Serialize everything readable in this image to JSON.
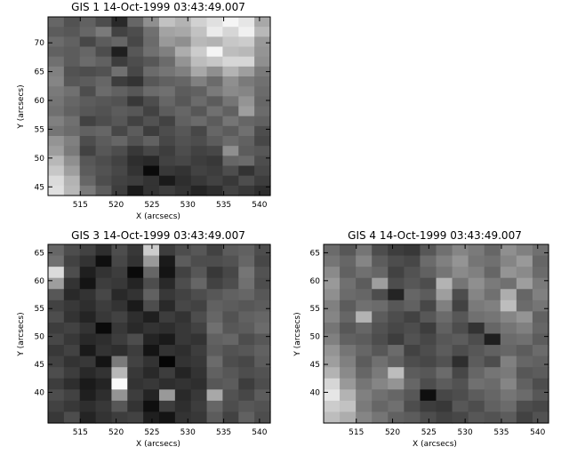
{
  "chart_data": [
    {
      "type": "heatmap",
      "title": "GIS 1 14-Oct-1999 03:43:49.007",
      "xlabel": "X (arcsecs)",
      "ylabel": "Y (arcsecs)",
      "xlim": [
        510.5,
        541.5
      ],
      "ylim": [
        43.5,
        74.5
      ],
      "xticks": [
        515,
        520,
        525,
        530,
        535,
        540
      ],
      "yticks": [
        45,
        50,
        55,
        60,
        65,
        70
      ],
      "grid": [
        [
          0.4,
          0.32,
          0.38,
          0.3,
          0.16,
          0.4,
          0.56,
          0.76,
          0.7,
          0.82,
          0.88,
          0.96,
          0.9,
          0.66
        ],
        [
          0.36,
          0.34,
          0.4,
          0.48,
          0.26,
          0.3,
          0.44,
          0.64,
          0.66,
          0.76,
          0.92,
          0.84,
          0.94,
          0.72
        ],
        [
          0.42,
          0.38,
          0.28,
          0.36,
          0.4,
          0.28,
          0.42,
          0.6,
          0.56,
          0.72,
          0.7,
          0.78,
          0.8,
          0.6
        ],
        [
          0.38,
          0.36,
          0.4,
          0.3,
          0.12,
          0.34,
          0.44,
          0.5,
          0.68,
          0.8,
          0.96,
          0.74,
          0.72,
          0.58
        ],
        [
          0.44,
          0.36,
          0.42,
          0.38,
          0.24,
          0.3,
          0.34,
          0.42,
          0.58,
          0.74,
          0.78,
          0.84,
          0.84,
          0.56
        ],
        [
          0.5,
          0.32,
          0.3,
          0.32,
          0.44,
          0.28,
          0.42,
          0.46,
          0.5,
          0.66,
          0.56,
          0.7,
          0.62,
          0.48
        ],
        [
          0.52,
          0.34,
          0.36,
          0.4,
          0.24,
          0.2,
          0.34,
          0.38,
          0.4,
          0.5,
          0.42,
          0.56,
          0.48,
          0.44
        ],
        [
          0.48,
          0.44,
          0.3,
          0.42,
          0.38,
          0.34,
          0.42,
          0.44,
          0.36,
          0.38,
          0.48,
          0.54,
          0.52,
          0.42
        ],
        [
          0.46,
          0.4,
          0.36,
          0.34,
          0.32,
          0.22,
          0.3,
          0.4,
          0.34,
          0.42,
          0.36,
          0.46,
          0.58,
          0.4
        ],
        [
          0.44,
          0.38,
          0.34,
          0.32,
          0.36,
          0.34,
          0.26,
          0.36,
          0.4,
          0.34,
          0.44,
          0.38,
          0.62,
          0.42
        ],
        [
          0.5,
          0.44,
          0.26,
          0.3,
          0.34,
          0.26,
          0.32,
          0.26,
          0.38,
          0.42,
          0.36,
          0.46,
          0.4,
          0.38
        ],
        [
          0.46,
          0.42,
          0.38,
          0.4,
          0.28,
          0.36,
          0.24,
          0.3,
          0.34,
          0.28,
          0.4,
          0.36,
          0.44,
          0.3
        ],
        [
          0.58,
          0.5,
          0.3,
          0.36,
          0.4,
          0.32,
          0.38,
          0.28,
          0.32,
          0.3,
          0.36,
          0.42,
          0.38,
          0.28
        ],
        [
          0.62,
          0.48,
          0.26,
          0.34,
          0.3,
          0.22,
          0.28,
          0.24,
          0.3,
          0.26,
          0.28,
          0.56,
          0.36,
          0.34
        ],
        [
          0.72,
          0.56,
          0.34,
          0.3,
          0.26,
          0.18,
          0.16,
          0.26,
          0.28,
          0.24,
          0.22,
          0.4,
          0.42,
          0.3
        ],
        [
          0.78,
          0.62,
          0.36,
          0.32,
          0.28,
          0.2,
          0.04,
          0.22,
          0.2,
          0.26,
          0.24,
          0.3,
          0.2,
          0.28
        ],
        [
          0.86,
          0.7,
          0.4,
          0.3,
          0.26,
          0.24,
          0.2,
          0.1,
          0.18,
          0.22,
          0.26,
          0.22,
          0.3,
          0.24
        ],
        [
          0.88,
          0.72,
          0.48,
          0.36,
          0.24,
          0.1,
          0.2,
          0.24,
          0.2,
          0.14,
          0.18,
          0.26,
          0.22,
          0.18
        ]
      ]
    },
    {
      "type": "heatmap",
      "title": "GIS 3 14-Oct-1999 03:43:49.007",
      "xlabel": "X (arcsecs)",
      "ylabel": "Y (arcsecs)",
      "xlim": [
        510.5,
        541.5
      ],
      "ylim": [
        34.5,
        66.5
      ],
      "xticks": [
        515,
        520,
        525,
        530,
        535,
        540
      ],
      "yticks": [
        40,
        45,
        50,
        55,
        60,
        65
      ],
      "grid": [
        [
          0.4,
          0.3,
          0.26,
          0.18,
          0.3,
          0.22,
          0.8,
          0.24,
          0.3,
          0.34,
          0.26,
          0.36,
          0.38,
          0.3
        ],
        [
          0.44,
          0.26,
          0.2,
          0.06,
          0.28,
          0.2,
          0.6,
          0.1,
          0.36,
          0.3,
          0.3,
          0.32,
          0.4,
          0.28
        ],
        [
          0.86,
          0.3,
          0.12,
          0.2,
          0.24,
          0.04,
          0.4,
          0.08,
          0.26,
          0.34,
          0.22,
          0.28,
          0.46,
          0.32
        ],
        [
          0.62,
          0.2,
          0.08,
          0.24,
          0.22,
          0.14,
          0.3,
          0.16,
          0.3,
          0.4,
          0.26,
          0.3,
          0.44,
          0.3
        ],
        [
          0.34,
          0.16,
          0.2,
          0.28,
          0.16,
          0.2,
          0.38,
          0.22,
          0.26,
          0.3,
          0.34,
          0.38,
          0.4,
          0.34
        ],
        [
          0.26,
          0.22,
          0.18,
          0.24,
          0.2,
          0.1,
          0.3,
          0.16,
          0.28,
          0.26,
          0.38,
          0.36,
          0.34,
          0.36
        ],
        [
          0.3,
          0.2,
          0.14,
          0.22,
          0.26,
          0.18,
          0.12,
          0.24,
          0.2,
          0.3,
          0.4,
          0.32,
          0.38,
          0.4
        ],
        [
          0.24,
          0.26,
          0.2,
          0.04,
          0.22,
          0.16,
          0.2,
          0.18,
          0.22,
          0.26,
          0.44,
          0.34,
          0.36,
          0.42
        ],
        [
          0.28,
          0.22,
          0.16,
          0.18,
          0.24,
          0.3,
          0.14,
          0.1,
          0.22,
          0.2,
          0.38,
          0.4,
          0.3,
          0.34
        ],
        [
          0.22,
          0.26,
          0.1,
          0.2,
          0.18,
          0.24,
          0.08,
          0.2,
          0.18,
          0.24,
          0.36,
          0.32,
          0.34,
          0.38
        ],
        [
          0.26,
          0.2,
          0.22,
          0.08,
          0.48,
          0.26,
          0.2,
          0.02,
          0.2,
          0.22,
          0.42,
          0.3,
          0.28,
          0.36
        ],
        [
          0.3,
          0.24,
          0.16,
          0.2,
          0.72,
          0.22,
          0.16,
          0.24,
          0.14,
          0.2,
          0.38,
          0.34,
          0.3,
          0.32
        ],
        [
          0.24,
          0.18,
          0.1,
          0.14,
          0.98,
          0.2,
          0.22,
          0.18,
          0.2,
          0.18,
          0.34,
          0.36,
          0.24,
          0.3
        ],
        [
          0.3,
          0.26,
          0.12,
          0.18,
          0.58,
          0.24,
          0.14,
          0.6,
          0.16,
          0.22,
          0.66,
          0.32,
          0.28,
          0.36
        ],
        [
          0.26,
          0.22,
          0.18,
          0.22,
          0.34,
          0.2,
          0.06,
          0.24,
          0.18,
          0.24,
          0.4,
          0.3,
          0.34,
          0.32
        ],
        [
          0.22,
          0.3,
          0.14,
          0.2,
          0.24,
          0.26,
          0.12,
          0.08,
          0.2,
          0.22,
          0.36,
          0.26,
          0.38,
          0.3
        ]
      ]
    },
    {
      "type": "heatmap",
      "title": "GIS 4 14-Oct-1999 03:43:49.007",
      "xlabel": "X (arcsecs)",
      "ylabel": "Y (arcsecs)",
      "xlim": [
        510.5,
        541.5
      ],
      "ylim": [
        34.5,
        66.5
      ],
      "xticks": [
        515,
        520,
        525,
        530,
        535,
        540
      ],
      "yticks": [
        40,
        45,
        50,
        55,
        60,
        65
      ],
      "grid": [
        [
          0.42,
          0.34,
          0.46,
          0.3,
          0.24,
          0.22,
          0.34,
          0.44,
          0.52,
          0.48,
          0.4,
          0.56,
          0.5,
          0.44
        ],
        [
          0.46,
          0.4,
          0.52,
          0.36,
          0.3,
          0.28,
          0.42,
          0.5,
          0.58,
          0.46,
          0.44,
          0.52,
          0.6,
          0.4
        ],
        [
          0.54,
          0.38,
          0.44,
          0.4,
          0.26,
          0.32,
          0.38,
          0.46,
          0.54,
          0.5,
          0.4,
          0.58,
          0.54,
          0.42
        ],
        [
          0.6,
          0.44,
          0.36,
          0.62,
          0.3,
          0.34,
          0.3,
          0.7,
          0.46,
          0.56,
          0.48,
          0.44,
          0.62,
          0.48
        ],
        [
          0.56,
          0.42,
          0.4,
          0.3,
          0.14,
          0.4,
          0.36,
          0.62,
          0.3,
          0.52,
          0.44,
          0.68,
          0.4,
          0.5
        ],
        [
          0.5,
          0.36,
          0.44,
          0.42,
          0.34,
          0.38,
          0.28,
          0.5,
          0.26,
          0.48,
          0.5,
          0.74,
          0.42,
          0.46
        ],
        [
          0.52,
          0.4,
          0.7,
          0.36,
          0.3,
          0.26,
          0.34,
          0.42,
          0.34,
          0.44,
          0.46,
          0.52,
          0.58,
          0.38
        ],
        [
          0.46,
          0.34,
          0.4,
          0.32,
          0.28,
          0.3,
          0.24,
          0.38,
          0.3,
          0.2,
          0.4,
          0.46,
          0.5,
          0.4
        ],
        [
          0.5,
          0.38,
          0.36,
          0.3,
          0.24,
          0.32,
          0.28,
          0.34,
          0.36,
          0.3,
          0.12,
          0.42,
          0.44,
          0.36
        ],
        [
          0.58,
          0.46,
          0.4,
          0.34,
          0.42,
          0.26,
          0.3,
          0.36,
          0.3,
          0.34,
          0.38,
          0.4,
          0.36,
          0.42
        ],
        [
          0.62,
          0.5,
          0.36,
          0.44,
          0.38,
          0.3,
          0.28,
          0.32,
          0.18,
          0.36,
          0.3,
          0.5,
          0.4,
          0.38
        ],
        [
          0.7,
          0.54,
          0.4,
          0.48,
          0.74,
          0.36,
          0.34,
          0.42,
          0.28,
          0.4,
          0.46,
          0.48,
          0.34,
          0.36
        ],
        [
          0.84,
          0.6,
          0.46,
          0.52,
          0.58,
          0.4,
          0.3,
          0.36,
          0.32,
          0.44,
          0.42,
          0.52,
          0.38,
          0.3
        ],
        [
          0.9,
          0.7,
          0.5,
          0.44,
          0.4,
          0.34,
          0.06,
          0.28,
          0.3,
          0.36,
          0.4,
          0.46,
          0.42,
          0.34
        ],
        [
          0.8,
          0.76,
          0.48,
          0.4,
          0.44,
          0.3,
          0.24,
          0.22,
          0.34,
          0.3,
          0.38,
          0.42,
          0.3,
          0.28
        ],
        [
          0.74,
          0.68,
          0.52,
          0.46,
          0.38,
          0.36,
          0.3,
          0.26,
          0.28,
          0.34,
          0.32,
          0.36,
          0.26,
          0.32
        ]
      ]
    }
  ]
}
